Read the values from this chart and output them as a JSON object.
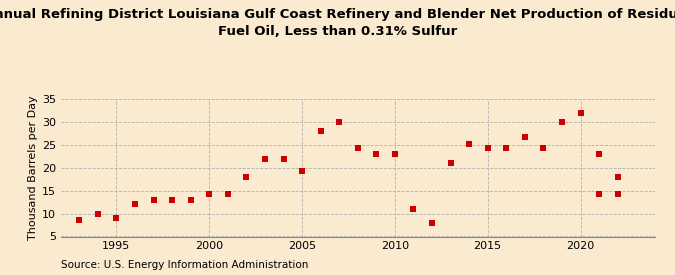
{
  "title_line1": "Annual Refining District Louisiana Gulf Coast Refinery and Blender Net Production of Residual",
  "title_line2": "Fuel Oil, Less than 0.31% Sulfur",
  "ylabel": "Thousand Barrels per Day",
  "source": "Source: U.S. Energy Information Administration",
  "background_color": "#faebd0",
  "marker_color": "#cc0000",
  "years": [
    1993,
    1994,
    1995,
    1996,
    1997,
    1998,
    1999,
    2000,
    2001,
    2002,
    2003,
    2004,
    2005,
    2006,
    2007,
    2008,
    2009,
    2010,
    2011,
    2012,
    2013,
    2014,
    2015,
    2016,
    2017,
    2018,
    2019,
    2020,
    2021,
    2022
  ],
  "values": [
    8.7,
    9.9,
    9.1,
    12.0,
    13.0,
    13.0,
    13.0,
    14.2,
    14.2,
    18.0,
    22.0,
    22.0,
    19.2,
    28.0,
    30.0,
    24.2,
    23.0,
    23.0,
    11.0,
    8.0,
    21.0,
    25.2,
    24.2,
    24.2,
    26.8,
    24.2,
    30.0,
    32.0,
    14.2,
    14.2
  ],
  "years2": [
    2021,
    2022
  ],
  "values2": [
    23.0,
    18.0
  ],
  "xlim": [
    1992.0,
    2024.0
  ],
  "ylim": [
    5,
    35
  ],
  "yticks": [
    5,
    10,
    15,
    20,
    25,
    30,
    35
  ],
  "xticks": [
    1995,
    2000,
    2005,
    2010,
    2015,
    2020
  ],
  "grid_color": "#aaaaaa",
  "title_fontsize": 9.5,
  "axis_fontsize": 8,
  "source_fontsize": 7.5,
  "marker_size": 15
}
